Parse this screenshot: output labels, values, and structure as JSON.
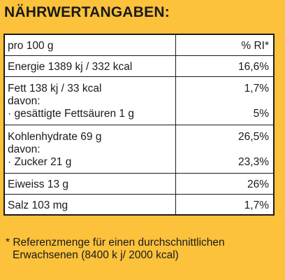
{
  "title": "NÄHRWERTANGABEN:",
  "rows": [
    {
      "label": [
        "pro 100 g"
      ],
      "value": [
        "% RI*"
      ]
    },
    {
      "label": [
        "Energie 1389 kj / 332 kcal"
      ],
      "value": [
        "16,6%"
      ]
    },
    {
      "label": [
        "Fett 138 kj / 33 kcal",
        "davon:",
        "· gesättigte Fettsäuren 1 g"
      ],
      "value": [
        "1,7%",
        "",
        "5%"
      ]
    },
    {
      "label": [
        "Kohlenhydrate 69 g",
        "davon:",
        "· Zucker 21 g"
      ],
      "value": [
        "26,5%",
        "",
        "23,3%"
      ]
    },
    {
      "label": [
        "Eiweiss 13 g"
      ],
      "value": [
        "26%"
      ]
    },
    {
      "label": [
        "Salz 103 mg"
      ],
      "value": [
        "1,7%"
      ]
    }
  ],
  "footnote": {
    "line1": "* Referenzmenge für einen durchschnittlichen",
    "line2": "Erwachsenen (8400 k j/ 2000 kcal)"
  }
}
